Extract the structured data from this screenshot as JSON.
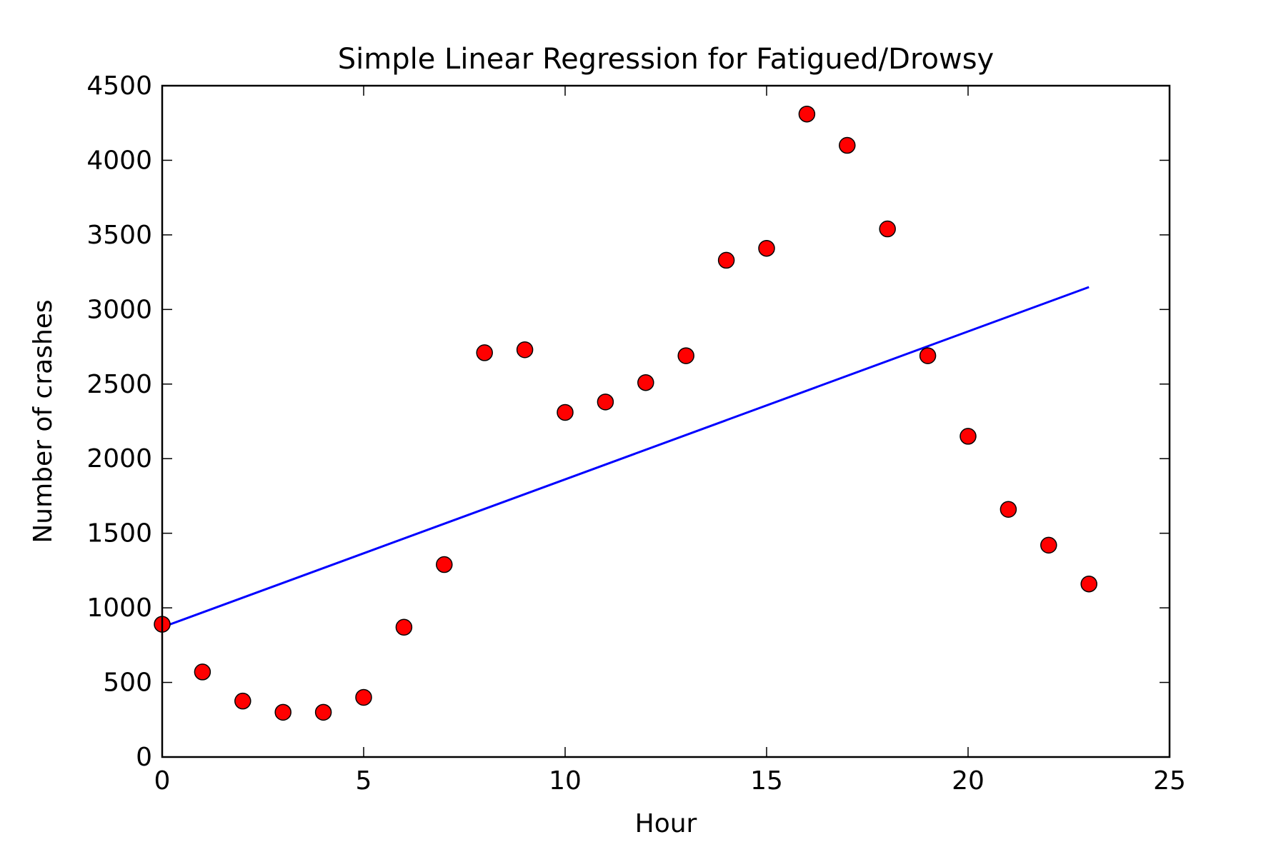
{
  "chart_data": {
    "type": "scatter",
    "title": "Simple Linear Regression for Fatigued/Drowsy",
    "xlabel": "Hour",
    "ylabel": "Number of crashes",
    "xlim": [
      0,
      25
    ],
    "ylim": [
      0,
      4500
    ],
    "xticks": [
      0,
      5,
      10,
      15,
      20,
      25
    ],
    "yticks": [
      0,
      500,
      1000,
      1500,
      2000,
      2500,
      3000,
      3500,
      4000,
      4500
    ],
    "grid": false,
    "series": [
      {
        "type": "scatter",
        "x": [
          0,
          1,
          2,
          3,
          4,
          5,
          6,
          7,
          8,
          9,
          10,
          11,
          12,
          13,
          14,
          15,
          16,
          17,
          18,
          19,
          20,
          21,
          22,
          23
        ],
        "y": [
          890,
          570,
          375,
          300,
          300,
          400,
          870,
          1290,
          2710,
          2730,
          2310,
          2380,
          2510,
          2690,
          3330,
          3410,
          4310,
          4100,
          3540,
          2690,
          2150,
          1660,
          1420,
          1160
        ],
        "color": "#ff0000",
        "edge_color": "#000000"
      },
      {
        "type": "line",
        "x": [
          0,
          23
        ],
        "y": [
          870,
          3150
        ],
        "color": "#0000ff"
      }
    ]
  }
}
